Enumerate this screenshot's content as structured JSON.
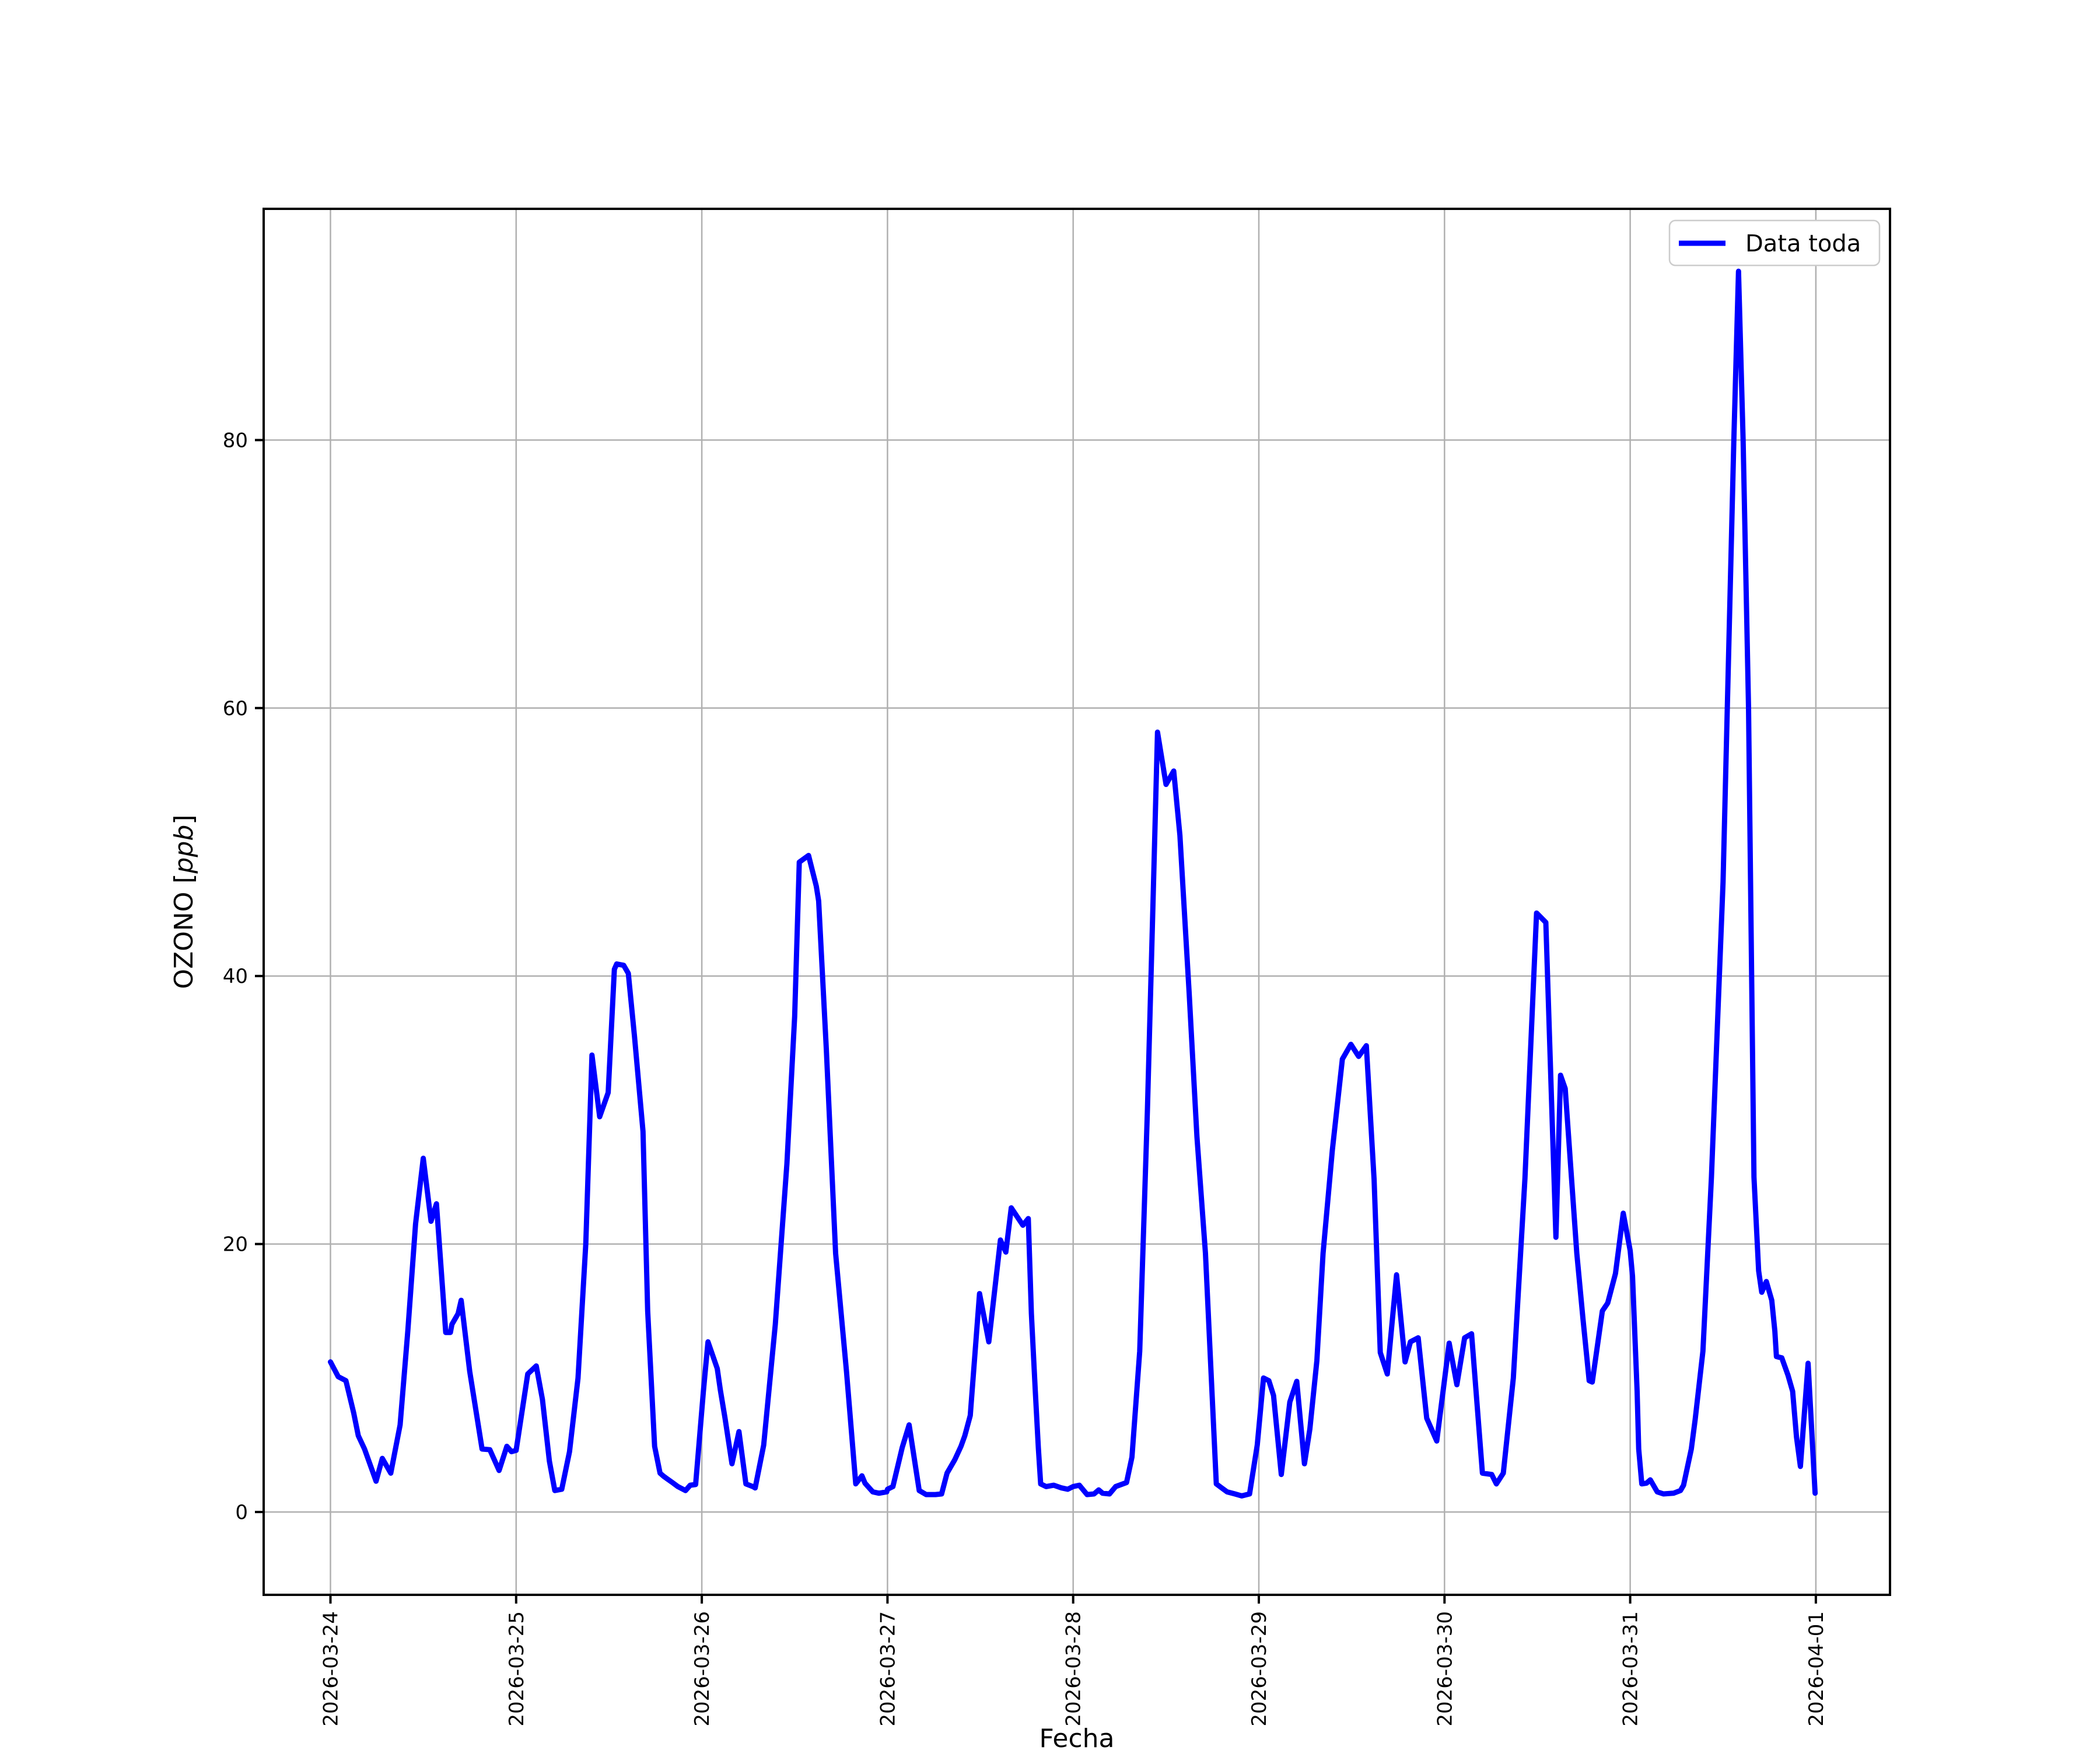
{
  "chart_data": {
    "type": "line",
    "title": "",
    "xlabel": "Fecha",
    "ylabel": "OZONO [ppb]",
    "ylabel_prefix": "OZONO [",
    "ylabel_italic": "ppb",
    "ylabel_suffix": "]",
    "grid": true,
    "legend_position": "upper right",
    "legend": [
      {
        "label": "Data toda",
        "color": "#0000ff"
      }
    ],
    "x_ticks": [
      "2026-03-24",
      "2026-03-25",
      "2026-03-26",
      "2026-03-27",
      "2026-03-28",
      "2026-03-29",
      "2026-03-30",
      "2026-03-31",
      "2026-04-01"
    ],
    "y_ticks": [
      0,
      20,
      40,
      60,
      80
    ],
    "ylim": [
      -6.2,
      97.1
    ],
    "xlim_days": [
      -0.36,
      8.4
    ],
    "x_unit": "hours since 2026-03-24 00:00",
    "y_unit": "ppb",
    "series": [
      {
        "name": "Data toda",
        "color": "#0000ff",
        "points": [
          [
            0,
            11.2
          ],
          [
            1,
            10.1
          ],
          [
            2,
            9.8
          ],
          [
            3,
            7.4
          ],
          [
            3.6,
            5.7
          ],
          [
            4.4,
            4.7
          ],
          [
            4.9,
            3.9
          ],
          [
            5.9,
            2.3
          ],
          [
            6.7,
            4.0
          ],
          [
            7.8,
            2.9
          ],
          [
            9,
            6.5
          ],
          [
            10,
            13.5
          ],
          [
            11,
            21.5
          ],
          [
            12,
            26.4
          ],
          [
            13,
            21.7
          ],
          [
            13.7,
            23.0
          ],
          [
            14.9,
            13.4
          ],
          [
            15.5,
            13.4
          ],
          [
            15.7,
            14.0
          ],
          [
            16.5,
            14.8
          ],
          [
            16.9,
            15.8
          ],
          [
            18,
            10.5
          ],
          [
            19.6,
            4.7
          ],
          [
            20.6,
            4.65
          ],
          [
            21.8,
            3.1
          ],
          [
            22.8,
            4.9
          ],
          [
            23.4,
            4.5
          ],
          [
            24,
            4.6
          ],
          [
            25.5,
            10.3
          ],
          [
            26.6,
            10.9
          ],
          [
            27.4,
            8.4
          ],
          [
            28.3,
            3.8
          ],
          [
            29,
            1.6
          ],
          [
            29.9,
            1.7
          ],
          [
            30.9,
            4.5
          ],
          [
            32,
            10
          ],
          [
            33,
            20
          ],
          [
            33.8,
            34.1
          ],
          [
            34.8,
            29.5
          ],
          [
            35.9,
            31.3
          ],
          [
            36.7,
            40.5
          ],
          [
            37,
            40.9
          ],
          [
            37.9,
            40.8
          ],
          [
            38.5,
            40.2
          ],
          [
            39.3,
            35.5
          ],
          [
            40.4,
            28.4
          ],
          [
            41,
            15
          ],
          [
            41.9,
            4.9
          ],
          [
            42.6,
            2.9
          ],
          [
            43.1,
            2.65
          ],
          [
            44.2,
            2.2
          ],
          [
            44.9,
            1.9
          ],
          [
            45.9,
            1.6
          ],
          [
            46.5,
            2.0
          ],
          [
            47.2,
            2.05
          ],
          [
            48.2,
            9
          ],
          [
            48.8,
            12.7
          ],
          [
            50,
            10.7
          ],
          [
            50.4,
            9.1
          ],
          [
            51,
            7.0
          ],
          [
            51.9,
            3.6
          ],
          [
            52.8,
            6.0
          ],
          [
            53.7,
            2.1
          ],
          [
            54.6,
            1.9
          ],
          [
            54.9,
            1.8
          ],
          [
            56,
            5
          ],
          [
            57.5,
            14
          ],
          [
            59,
            26
          ],
          [
            60,
            37
          ],
          [
            60.6,
            48.5
          ],
          [
            61.8,
            49.0
          ],
          [
            62.8,
            46.7
          ],
          [
            63.1,
            45.6
          ],
          [
            64.1,
            34.5
          ],
          [
            65.3,
            19.3
          ],
          [
            66.7,
            10.5
          ],
          [
            67.9,
            2.1
          ],
          [
            68.7,
            2.7
          ],
          [
            69.1,
            2.15
          ],
          [
            70.1,
            1.5
          ],
          [
            70.9,
            1.4
          ],
          [
            71.9,
            1.5
          ],
          [
            72,
            1.7
          ],
          [
            72.7,
            1.9
          ],
          [
            73.9,
            4.8
          ],
          [
            74.8,
            6.5
          ],
          [
            75.7,
            3.1
          ],
          [
            76.1,
            1.6
          ],
          [
            77,
            1.3
          ],
          [
            78.2,
            1.3
          ],
          [
            79,
            1.35
          ],
          [
            79.7,
            2.9
          ],
          [
            80.7,
            3.9
          ],
          [
            81.5,
            4.9
          ],
          [
            82,
            5.7
          ],
          [
            82.7,
            7.2
          ],
          [
            83.9,
            16.3
          ],
          [
            85.1,
            12.7
          ],
          [
            86.6,
            20.3
          ],
          [
            87.3,
            19.4
          ],
          [
            88,
            22.7
          ],
          [
            89.5,
            21.4
          ],
          [
            90.2,
            21.9
          ],
          [
            90.6,
            14.8
          ],
          [
            91.1,
            9.1
          ],
          [
            91.5,
            4.8
          ],
          [
            91.8,
            2.1
          ],
          [
            92.5,
            1.9
          ],
          [
            93.5,
            2.0
          ],
          [
            94.5,
            1.8
          ],
          [
            95.3,
            1.7
          ],
          [
            96,
            1.9
          ],
          [
            96.8,
            2.0
          ],
          [
            97.8,
            1.3
          ],
          [
            98.7,
            1.35
          ],
          [
            99.3,
            1.65
          ],
          [
            99.8,
            1.4
          ],
          [
            100.7,
            1.35
          ],
          [
            101.5,
            1.9
          ],
          [
            102.9,
            2.2
          ],
          [
            103.6,
            4.1
          ],
          [
            104.6,
            12
          ],
          [
            105.6,
            30
          ],
          [
            106.3,
            45
          ],
          [
            106.9,
            58.2
          ],
          [
            108,
            54.3
          ],
          [
            109,
            55.3
          ],
          [
            109.8,
            50.5
          ],
          [
            111,
            38.7
          ],
          [
            112,
            28
          ],
          [
            113.1,
            19.3
          ],
          [
            114.5,
            2.1
          ],
          [
            115.2,
            1.8
          ],
          [
            115.9,
            1.5
          ],
          [
            116.9,
            1.35
          ],
          [
            117.8,
            1.2
          ],
          [
            118.8,
            1.35
          ],
          [
            119.8,
            5
          ],
          [
            120.6,
            10.0
          ],
          [
            121.3,
            9.8
          ],
          [
            121.9,
            8.7
          ],
          [
            122.9,
            2.8
          ],
          [
            124,
            8.2
          ],
          [
            124.9,
            9.75
          ],
          [
            125.9,
            3.6
          ],
          [
            126.6,
            6.2
          ],
          [
            127.5,
            11.3
          ],
          [
            128.3,
            19.3
          ],
          [
            129.5,
            27
          ],
          [
            130.8,
            33.8
          ],
          [
            131.9,
            34.9
          ],
          [
            132.9,
            34.0
          ],
          [
            133.9,
            34.8
          ],
          [
            134.9,
            24.8
          ],
          [
            135.7,
            11.9
          ],
          [
            136.6,
            10.3
          ],
          [
            137.8,
            17.7
          ],
          [
            138.9,
            11.2
          ],
          [
            139.6,
            12.7
          ],
          [
            140.6,
            13.0
          ],
          [
            141.7,
            7.0
          ],
          [
            143,
            5.3
          ],
          [
            144.6,
            12.6
          ],
          [
            145.6,
            9.5
          ],
          [
            146.6,
            13.0
          ],
          [
            147.5,
            13.3
          ],
          [
            148.9,
            2.9
          ],
          [
            150.1,
            2.8
          ],
          [
            150.7,
            2.1
          ],
          [
            151.6,
            2.9
          ],
          [
            152.9,
            10
          ],
          [
            154.4,
            24.9
          ],
          [
            155.9,
            44.7
          ],
          [
            157.1,
            44.0
          ],
          [
            158.4,
            20.5
          ],
          [
            159,
            32.6
          ],
          [
            159.6,
            31.6
          ],
          [
            161.1,
            19.3
          ],
          [
            161.9,
            14.4
          ],
          [
            162.7,
            9.8
          ],
          [
            163.1,
            9.7
          ],
          [
            164.4,
            15.0
          ],
          [
            165.1,
            15.6
          ],
          [
            166.1,
            17.8
          ],
          [
            167.1,
            22.3
          ],
          [
            168,
            19.5
          ],
          [
            168.3,
            17.6
          ],
          [
            168.9,
            9.0
          ],
          [
            169.1,
            4.7
          ],
          [
            169.5,
            2.1
          ],
          [
            170.1,
            2.15
          ],
          [
            170.6,
            2.4
          ],
          [
            171.5,
            1.5
          ],
          [
            172.3,
            1.35
          ],
          [
            173.6,
            1.4
          ],
          [
            174.5,
            1.6
          ],
          [
            174.9,
            2.0
          ],
          [
            175.9,
            4.7
          ],
          [
            176.4,
            6.9
          ],
          [
            177.4,
            12
          ],
          [
            178.5,
            25
          ],
          [
            180,
            47
          ],
          [
            181.4,
            80
          ],
          [
            182,
            92.6
          ],
          [
            182.6,
            80
          ],
          [
            183.3,
            60
          ],
          [
            184,
            25
          ],
          [
            184.6,
            18.0
          ],
          [
            185,
            16.4
          ],
          [
            185.6,
            17.2
          ],
          [
            186.3,
            15.8
          ],
          [
            186.7,
            13.5
          ],
          [
            186.9,
            11.6
          ],
          [
            187.6,
            11.5
          ],
          [
            188.4,
            10.2
          ],
          [
            189,
            9.0
          ],
          [
            189.5,
            5.6
          ],
          [
            190,
            3.4
          ],
          [
            191,
            11.1
          ],
          [
            191.9,
            1.4
          ]
        ]
      }
    ],
    "colors": {
      "line": "#0000ff",
      "grid": "#b0b0b0",
      "spine": "#000000",
      "legend_border": "#cccccc",
      "background": "#ffffff"
    }
  }
}
